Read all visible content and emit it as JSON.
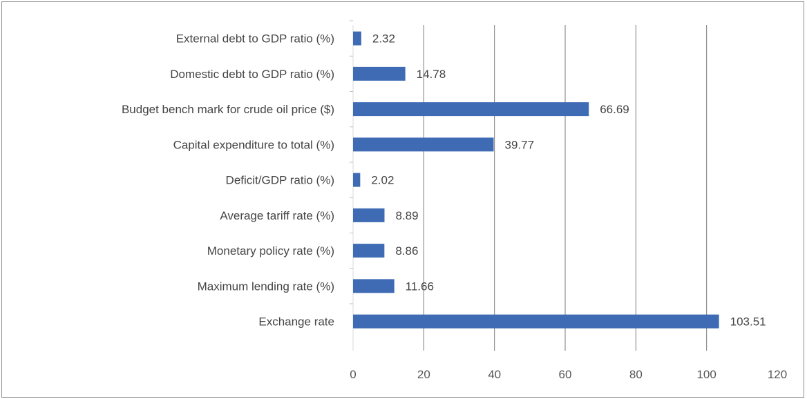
{
  "chart_data": {
    "type": "bar",
    "orientation": "horizontal",
    "title": "",
    "xlabel": "",
    "ylabel": "",
    "categories": [
      "External debt to GDP ratio (%)",
      "Domestic debt to GDP ratio (%)",
      "Budget bench mark for crude oil price ($)",
      "Capital expenditure to total (%)",
      "Deficit/GDP ratio (%)",
      "Average tariff rate (%)",
      "Monetary policy rate (%)",
      "Maximum lending rate (%)",
      "Exchange rate"
    ],
    "values": [
      2.32,
      14.78,
      66.69,
      39.77,
      2.02,
      8.89,
      8.86,
      11.66,
      103.51
    ],
    "value_labels": [
      "2.32",
      "14.78",
      "66.69",
      "39.77",
      "2.02",
      "8.89",
      "8.86",
      "11.66",
      "103.51"
    ],
    "xlim": [
      0,
      120
    ],
    "xticks": [
      0,
      20,
      40,
      60,
      80,
      100,
      120
    ],
    "xtick_labels": [
      "0",
      "20",
      "40",
      "60",
      "80",
      "100",
      "120"
    ],
    "grid": "vertical",
    "legend": "none",
    "colors": {
      "bar": "#3e6bb4",
      "gridline": "#7a7a7a",
      "text": "#444444",
      "frame": "#8c8c8c"
    }
  }
}
